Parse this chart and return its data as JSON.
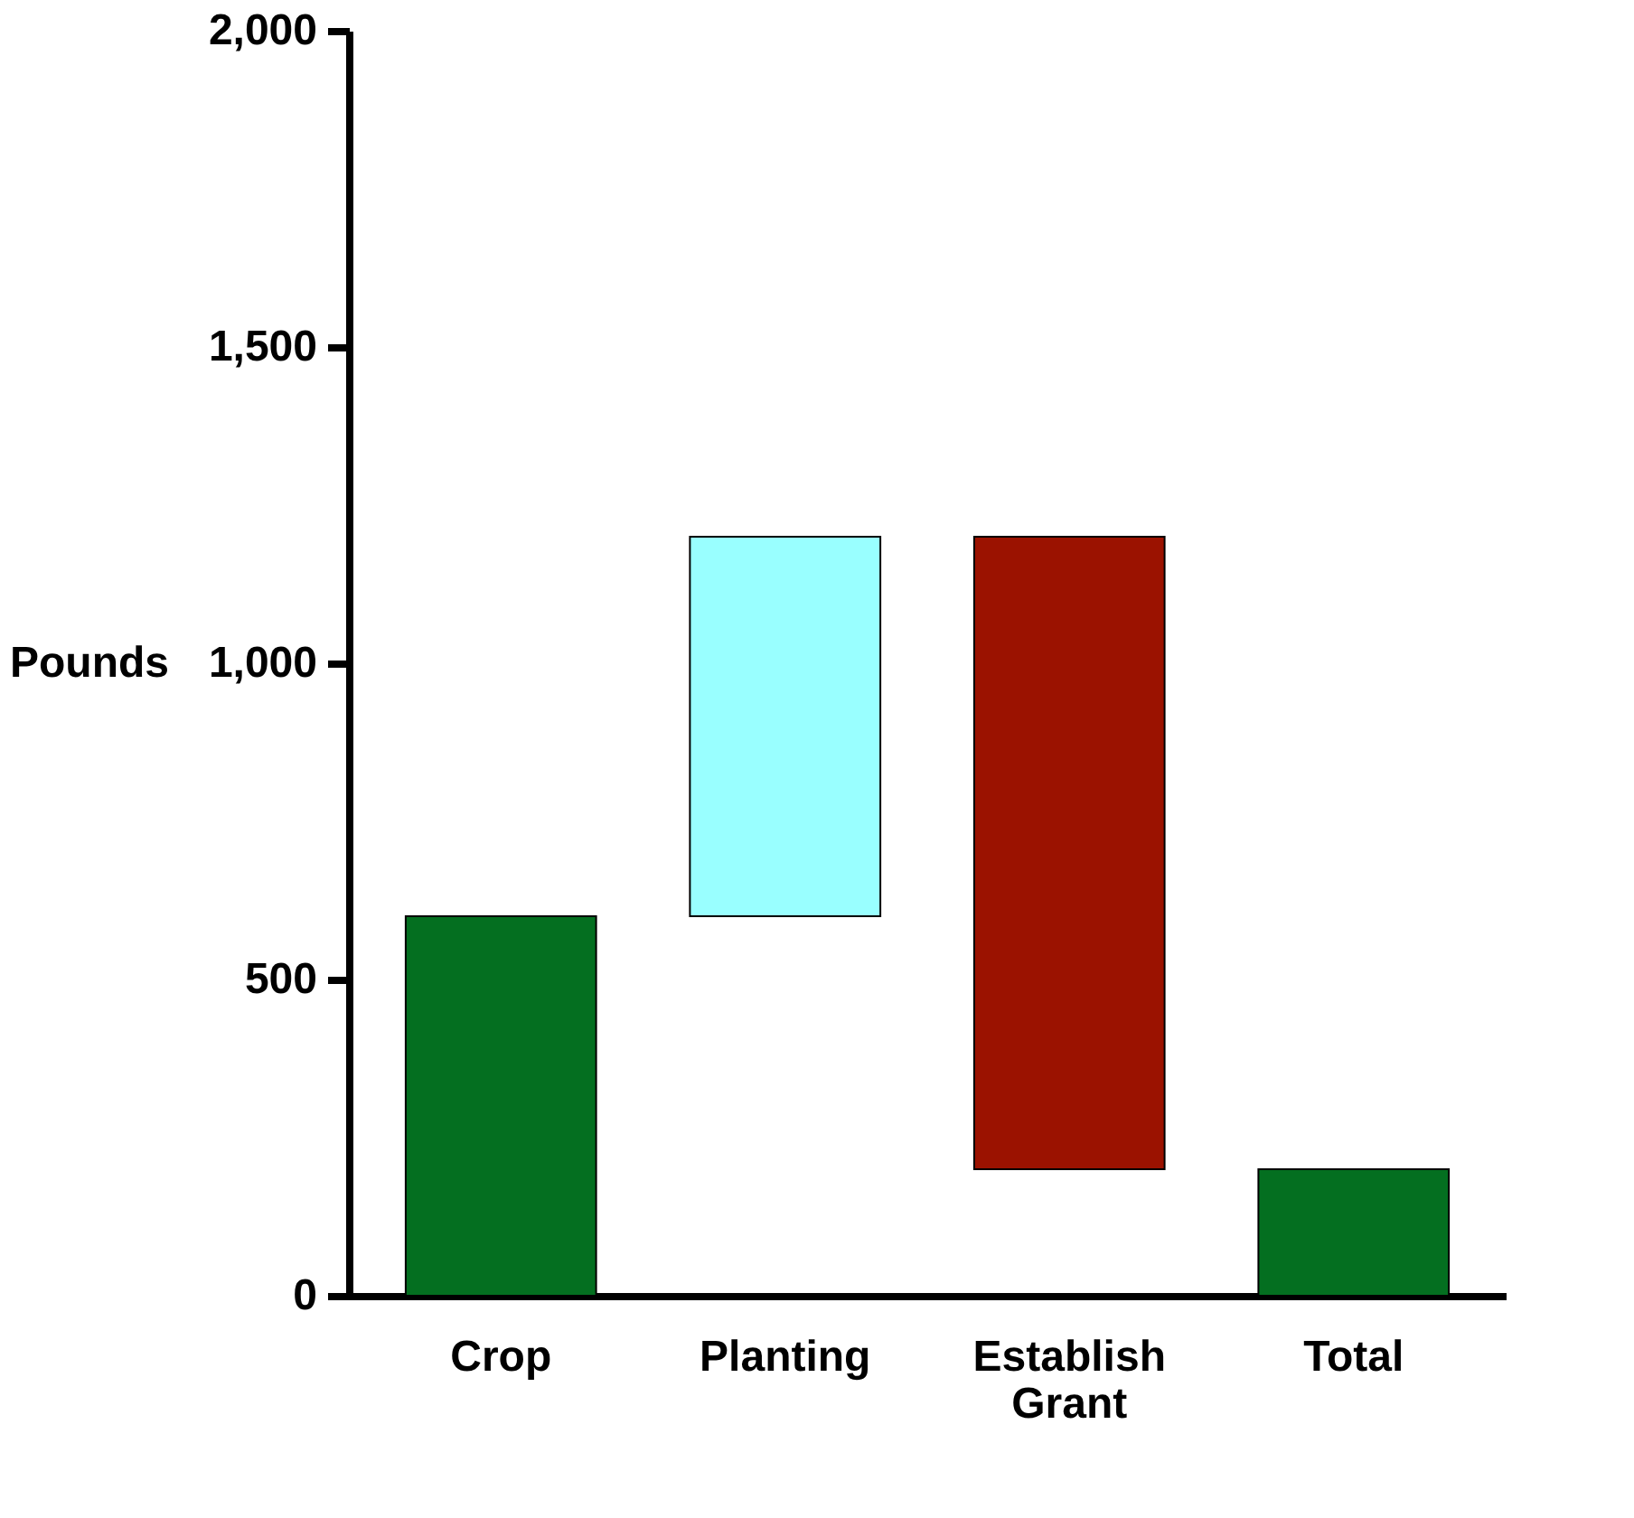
{
  "chart_data": {
    "type": "bar",
    "ylabel": "Pounds",
    "categories": [
      "Crop",
      "Planting",
      "Establish Grant",
      "Total"
    ],
    "base": [
      0,
      600,
      1200,
      0
    ],
    "values": [
      600,
      600,
      -1000,
      200
    ],
    "colors": [
      "#046f20",
      "#99ffff",
      "#9b1200",
      "#046f20"
    ],
    "ylim": [
      0,
      2000
    ],
    "yticks": [
      0,
      {
        "value": 500,
        "label": "500"
      },
      {
        "value": 1000,
        "label": "1,000"
      },
      {
        "value": 1500,
        "label": "1,500"
      },
      {
        "value": 2000,
        "label": "2,000"
      }
    ],
    "grid": false
  }
}
